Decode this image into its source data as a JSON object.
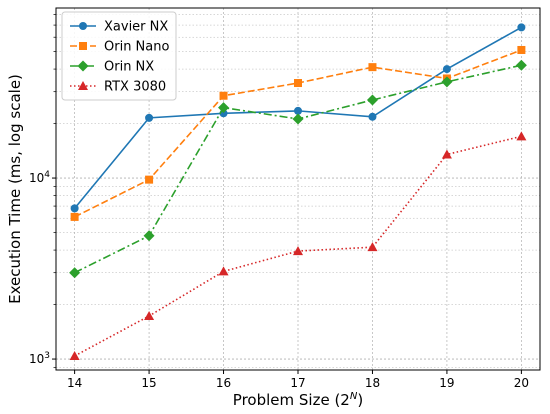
{
  "chart_data": {
    "type": "line",
    "title": "",
    "xlabel": "Problem Size (2",
    "xlabel_sup": "N",
    "xlabel_close": ")",
    "ylabel": "Execution Time (ms, log scale)",
    "yscale": "log",
    "grid": true,
    "legend_placement": "top-left",
    "x": [
      14,
      15,
      16,
      17,
      18,
      19,
      20
    ],
    "xlim": [
      13.75,
      20.25
    ],
    "ylim": [
      870,
      87000
    ],
    "y_major_ticks": [
      {
        "value": 1000,
        "base": "10",
        "exp": "3"
      },
      {
        "value": 10000,
        "base": "10",
        "exp": "4"
      }
    ],
    "series": [
      {
        "name": "Xavier NX",
        "color": "#1f77b4",
        "dash": "",
        "marker": "circle",
        "values": [
          6800,
          21500,
          22800,
          23500,
          21800,
          40000,
          68000
        ]
      },
      {
        "name": "Orin Nano",
        "color": "#ff7f0e",
        "dash": "7,3",
        "marker": "square",
        "values": [
          6100,
          9800,
          28500,
          33500,
          41000,
          35500,
          51000
        ]
      },
      {
        "name": "Orin NX",
        "color": "#2ca02c",
        "dash": "8,3,2,3",
        "marker": "diamond",
        "values": [
          3000,
          4800,
          24500,
          21200,
          27000,
          34000,
          42000
        ]
      },
      {
        "name": "RTX 3080",
        "color": "#d62728",
        "dash": "1.5,2.5",
        "marker": "triangle",
        "values": [
          1040,
          1730,
          3050,
          3950,
          4150,
          13500,
          17000
        ]
      }
    ]
  }
}
